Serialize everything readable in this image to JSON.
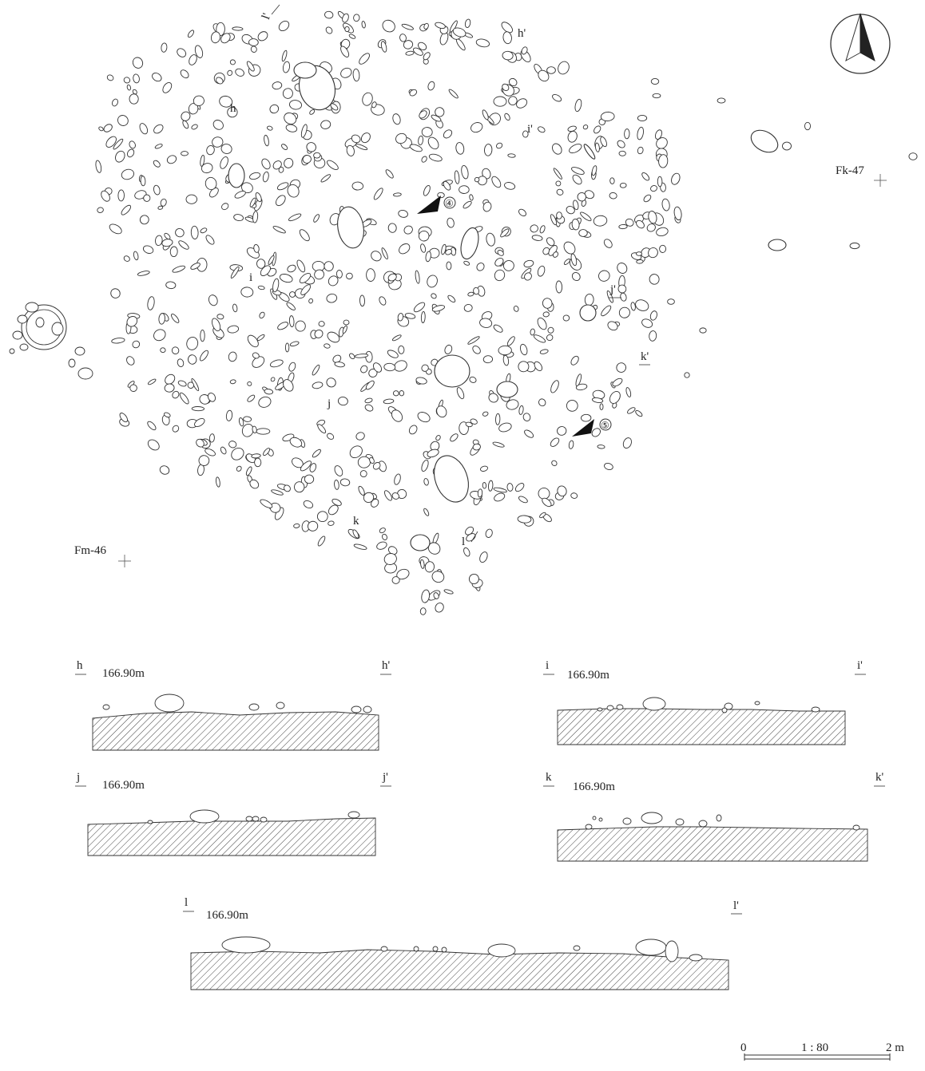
{
  "plan": {
    "grid_labels": {
      "fk47": "Fk-47",
      "fm46": "Fm-46"
    },
    "markers": {
      "m4": "④",
      "m5": "⑤"
    },
    "section_line_labels": {
      "h": "h",
      "h_prime": "h'",
      "i": "i",
      "i_prime": "i'",
      "j": "j",
      "j_prime": "j'",
      "k": "k",
      "k_prime": "k'",
      "l": "l",
      "l_prime": "l'"
    }
  },
  "sections": [
    {
      "id": "h",
      "start": "h",
      "end": "h'",
      "elevation": "166.90m"
    },
    {
      "id": "i",
      "start": "i",
      "end": "i'",
      "elevation": "166.90m"
    },
    {
      "id": "j",
      "start": "j",
      "end": "j'",
      "elevation": "166.90m"
    },
    {
      "id": "k",
      "start": "k",
      "end": "k'",
      "elevation": "166.90m"
    },
    {
      "id": "l",
      "start": "l",
      "end": "l'",
      "elevation": "166.90m"
    }
  ],
  "scale_bar": {
    "zero": "0",
    "ratio": "1 : 80",
    "length": "2 m"
  },
  "north_arrow": {
    "icon": "north-arrow-icon"
  }
}
